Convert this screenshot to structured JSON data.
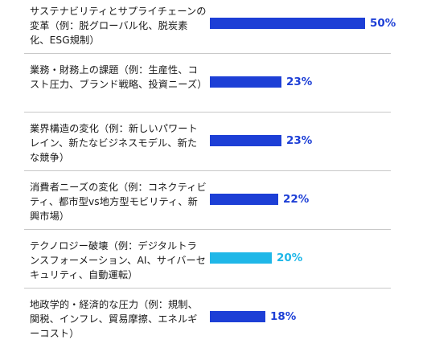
{
  "chart_data": {
    "type": "bar",
    "orientation": "horizontal",
    "categories": [
      "サステナビリティとサプライチェーンの変革（例：脱グローバル化、脱炭素化、ESG規制）",
      "業務・財務上の課題（例：生産性、コスト圧力、ブランド戦略、投資ニーズ）",
      "業界構造の変化（例：新しいパワートレイン、新たなビジネスモデル、新たな競争）",
      "消費者ニーズの変化（例：コネクティビティ、都市型vs地方型モビリティ、新興市場）",
      "テクノロジー破壊（例：デジタルトランスフォーメーション、AI、サイバーセキュリティ、自動運転）",
      "地政学的・経済的な圧力（例：規制、関税、インフレ、貿易摩擦、エネルギーコスト）"
    ],
    "values": [
      50,
      23,
      23,
      22,
      20,
      18
    ],
    "value_labels": [
      "50%",
      "23%",
      "23%",
      "22%",
      "20%",
      "18%"
    ],
    "colors": [
      "#1d3fd6",
      "#1d3fd6",
      "#1d3fd6",
      "#1d3fd6",
      "#1fb7e8",
      "#1d3fd6"
    ],
    "xlim": [
      0,
      50
    ],
    "grid": false
  }
}
